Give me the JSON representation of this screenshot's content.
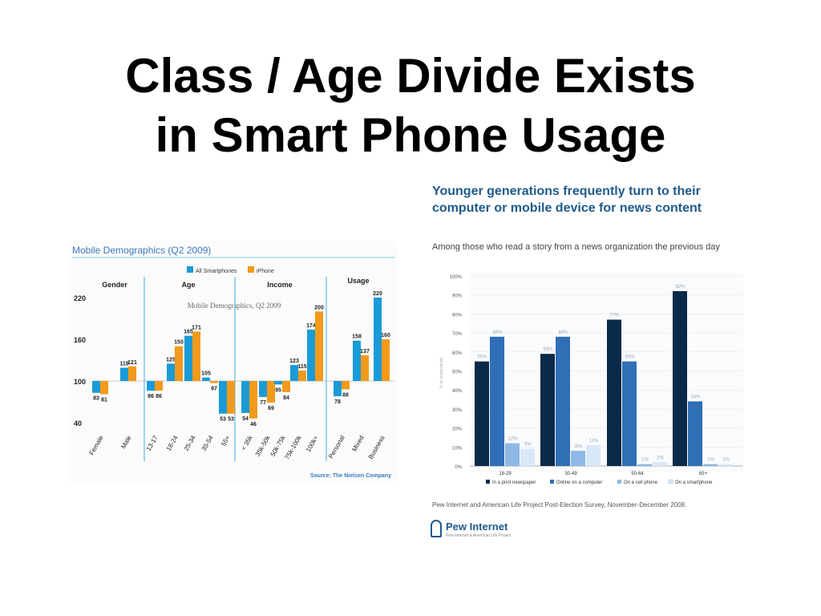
{
  "slide": {
    "title_line1": "Class / Age Divide Exists",
    "title_line2": "in Smart Phone Usage"
  },
  "left_chart": {
    "heading": "Mobile Demographics (Q2 2009)",
    "watermark": "Mobile Demographics, Q2 2009",
    "source": "Source: The Nielsen Company",
    "colors": {
      "all_smartphones": "#1a9bd7",
      "iphone": "#f39a1a",
      "heading": "#3a7bbf",
      "separator": "#7fc4e6"
    }
  },
  "right_chart": {
    "title": "Younger generations frequently turn to their computer or mobile device for news content",
    "subtitle": "Among those who read a story from a news organization the previous day",
    "source": "Pew Internet and American Life Project Post-Election Survey, November-December 2008.",
    "logo_text": "Pew Internet",
    "logo_tagline": "Pew Internet & American Life Project",
    "colors": [
      "#0b2a4a",
      "#2e6fb5",
      "#8fb8e6",
      "#d8e8f8"
    ]
  },
  "chart_data": [
    {
      "type": "bar",
      "title": "Mobile Demographics (Q2 2009)",
      "baseline": 100,
      "ylim": [
        40,
        220
      ],
      "yticks": [
        40,
        100,
        160,
        220
      ],
      "legend": [
        "All Smartphones",
        "iPhone"
      ],
      "legend_position": "top",
      "groups": [
        {
          "name": "Gender",
          "categories": [
            "Female",
            "Male"
          ]
        },
        {
          "name": "Age",
          "categories": [
            "13-17",
            "18-24",
            "25-34",
            "35-54",
            "55+"
          ]
        },
        {
          "name": "Income",
          "categories": [
            "< 35k",
            "35k-50k",
            "50k-75k",
            "75k-100k",
            "100k+"
          ]
        },
        {
          "name": "Usage",
          "categories": [
            "Personal",
            "Mixed",
            "Business"
          ]
        }
      ],
      "series": [
        {
          "name": "All Smartphones",
          "values": [
            83,
            119,
            86,
            125,
            165,
            105,
            53,
            54,
            77,
            95,
            123,
            174,
            78,
            158,
            220
          ]
        },
        {
          "name": "iPhone",
          "values": [
            81,
            121,
            86,
            150,
            171,
            97,
            53,
            46,
            69,
            84,
            115,
            200,
            88,
            137,
            160
          ]
        }
      ]
    },
    {
      "type": "bar",
      "ylabel": "% of respondents",
      "ylim": [
        0,
        100
      ],
      "yticks": [
        "0%",
        "10%",
        "20%",
        "30%",
        "40%",
        "50%",
        "60%",
        "70%",
        "80%",
        "90%",
        "100%"
      ],
      "categories": [
        "18-29",
        "30-49",
        "50-64",
        "65+"
      ],
      "legend_position": "bottom",
      "series": [
        {
          "name": "In a print newspaper",
          "values": [
            55,
            59,
            77,
            92
          ],
          "labels": [
            "55%",
            "59%",
            "77%",
            "92%"
          ]
        },
        {
          "name": "Online on a computer",
          "values": [
            68,
            68,
            55,
            34
          ],
          "labels": [
            "68%",
            "68%",
            "55%",
            "34%"
          ]
        },
        {
          "name": "On a cell phone",
          "values": [
            12,
            8,
            1,
            1
          ],
          "labels": [
            "12%",
            "8%",
            "1%",
            "1%"
          ]
        },
        {
          "name": "On a smartphone",
          "values": [
            9,
            11,
            2,
            1
          ],
          "labels": [
            "9%",
            "11%",
            "2%",
            "1%"
          ]
        }
      ]
    }
  ]
}
